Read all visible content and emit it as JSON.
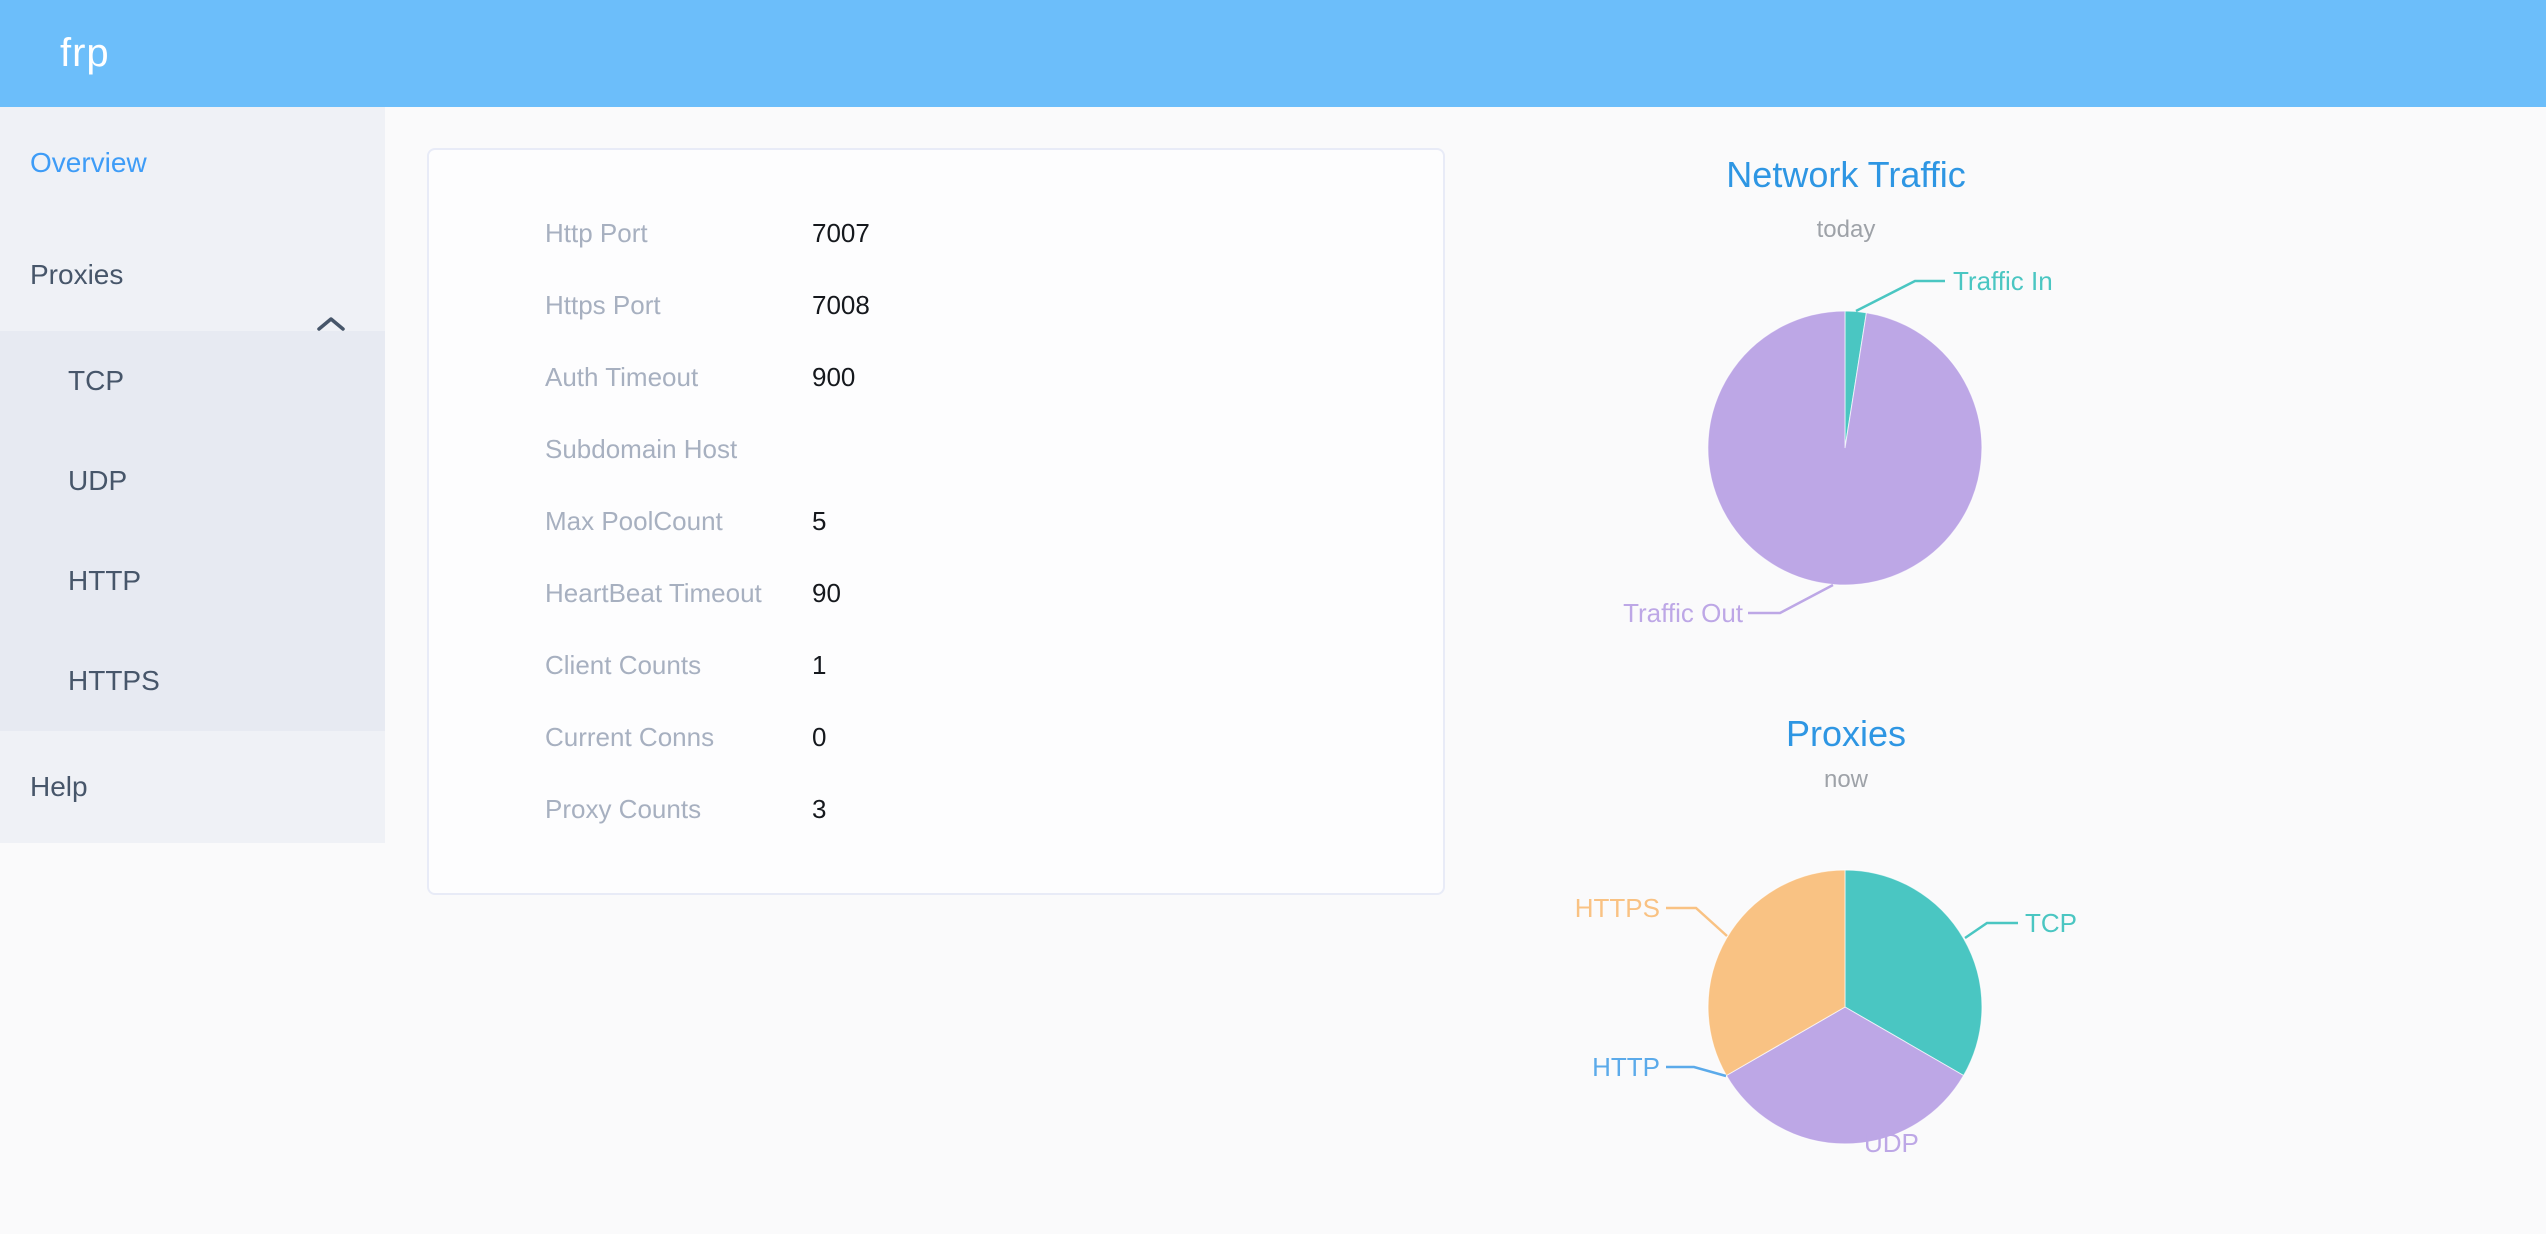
{
  "theme": {
    "header_bg": "#6CBEFA",
    "sidebar_bg": "#EFF1F6",
    "submenu_bg": "#E7EAF2",
    "page_bg": "#FAFAFB",
    "card_bg": "#FDFDFE",
    "card_border": "#E8EBF7",
    "active_item_color": "#3E9CF7",
    "menu_item_color": "#47566A",
    "label_color": "#A7B0C0",
    "value_color": "#15181D",
    "chart_title_color": "#2E96E3",
    "chart_subtitle_color": "#9EA2A8"
  },
  "header": {
    "logo": "frp"
  },
  "sidebar": {
    "overview": "Overview",
    "proxies": "Proxies",
    "proxy_types": [
      "TCP",
      "UDP",
      "HTTP",
      "HTTPS"
    ],
    "help": "Help"
  },
  "server_info": {
    "rows": [
      {
        "label": "Http Port",
        "value": "7007"
      },
      {
        "label": "Https Port",
        "value": "7008"
      },
      {
        "label": "Auth Timeout",
        "value": "900"
      },
      {
        "label": "Subdomain Host",
        "value": ""
      },
      {
        "label": "Max PoolCount",
        "value": "5"
      },
      {
        "label": "HeartBeat Timeout",
        "value": "90"
      },
      {
        "label": "Client Counts",
        "value": "1"
      },
      {
        "label": "Current Conns",
        "value": "0"
      },
      {
        "label": "Proxy Counts",
        "value": "3"
      }
    ]
  },
  "chart_data": [
    {
      "type": "pie",
      "title": "Network Traffic",
      "subtitle": "today",
      "units": "percent of total (estimated from pie angles)",
      "legend": "none",
      "labels": "outside with leader lines",
      "slices": [
        {
          "name": "Traffic In",
          "value": 2.5,
          "color": "#4AC6C2"
        },
        {
          "name": "Traffic Out",
          "value": 97.5,
          "color": "#BDA7E6"
        }
      ]
    },
    {
      "type": "pie",
      "title": "Proxies",
      "subtitle": "now",
      "units": "proxy count",
      "legend": "none",
      "labels": "outside with leader lines",
      "slices": [
        {
          "name": "TCP",
          "value": 1,
          "color": "#4AC6C2"
        },
        {
          "name": "UDP",
          "value": 1,
          "color": "#BDA7E6"
        },
        {
          "name": "HTTP",
          "value": 0,
          "color": "#5BAAEA"
        },
        {
          "name": "HTTPS",
          "value": 1,
          "color": "#F9C283"
        }
      ]
    }
  ]
}
